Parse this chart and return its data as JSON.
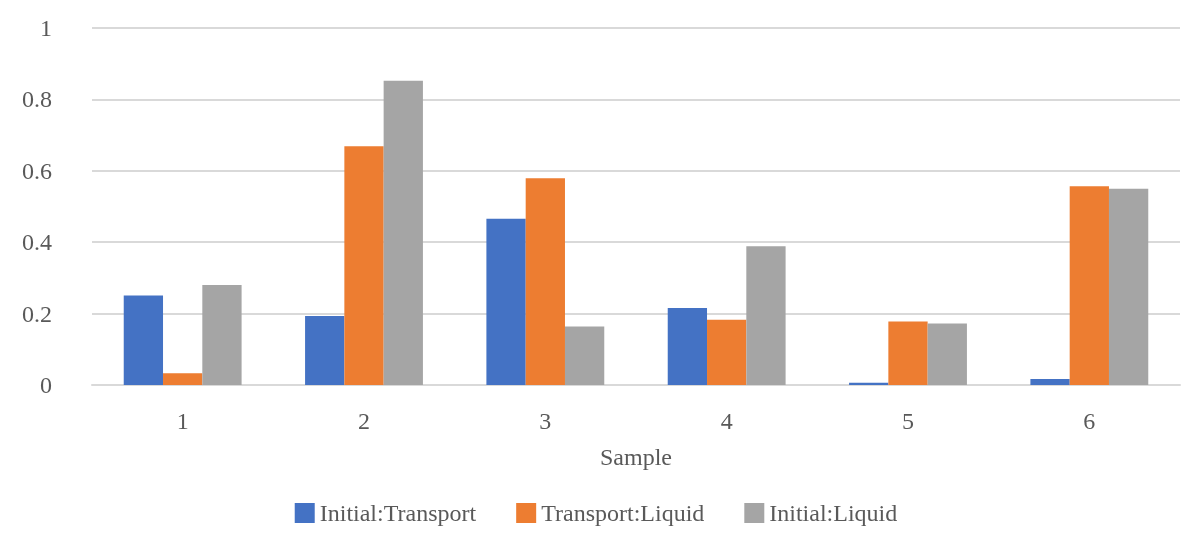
{
  "chart_data": {
    "type": "bar",
    "xlabel": "Sample",
    "categories": [
      "1",
      "2",
      "3",
      "4",
      "5",
      "6"
    ],
    "series": [
      {
        "name": "Initial:Transport",
        "color": "#4472c4",
        "values": [
          0.251,
          0.193,
          0.466,
          0.216,
          0.006,
          0.017
        ]
      },
      {
        "name": "Transport:Liquid",
        "color": "#ed7d31",
        "values": [
          0.033,
          0.669,
          0.579,
          0.183,
          0.178,
          0.557
        ]
      },
      {
        "name": "Initial:Liquid",
        "color": "#a5a5a5",
        "values": [
          0.28,
          0.852,
          0.164,
          0.389,
          0.172,
          0.55
        ]
      }
    ],
    "ylim": [
      0,
      1
    ],
    "yticks": [
      0,
      0.2,
      0.4,
      0.6,
      0.8,
      1
    ],
    "grid": "y",
    "legend": "bottom"
  }
}
